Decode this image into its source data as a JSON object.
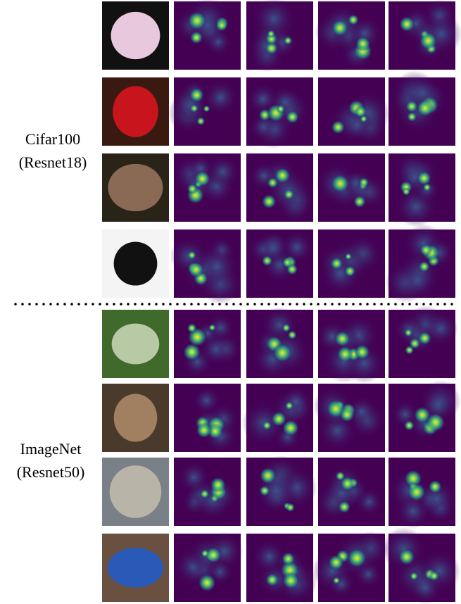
{
  "groups": [
    {
      "dataset": "Cifar100",
      "model": "(Resnet18)"
    },
    {
      "dataset": "ImageNet",
      "model": "(Resnet50)"
    }
  ]
}
